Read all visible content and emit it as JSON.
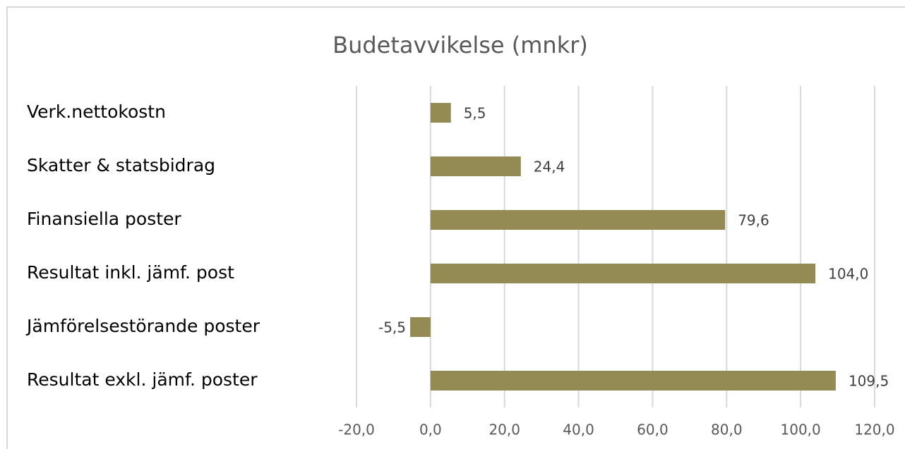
{
  "chart_data": {
    "type": "bar",
    "orientation": "horizontal",
    "title": "Budetavvikelse (mnkr)",
    "categories": [
      "Verk.nettokostn",
      "Skatter & statsbidrag",
      "Finansiella poster",
      "Resultat inkl. jämf. post",
      "Jämförelsestörande poster",
      "Resultat exkl. jämf. poster"
    ],
    "values": [
      5.5,
      24.4,
      79.6,
      104.0,
      -5.5,
      109.5
    ],
    "value_labels": [
      "5,5",
      "24,4",
      "79,6",
      "104,0",
      "-5,5",
      "109,5"
    ],
    "color": "#948a54",
    "xlim": [
      -20,
      120
    ],
    "xticks": [
      {
        "value": -20,
        "label": "-20,0"
      },
      {
        "value": 0,
        "label": "0,0"
      },
      {
        "value": 20,
        "label": "20,0"
      },
      {
        "value": 40,
        "label": "40,0"
      },
      {
        "value": 60,
        "label": "60,0"
      },
      {
        "value": 80,
        "label": "80,0"
      },
      {
        "value": 100,
        "label": "100,0"
      },
      {
        "value": 120,
        "label": "120,0"
      }
    ],
    "grid": true
  }
}
